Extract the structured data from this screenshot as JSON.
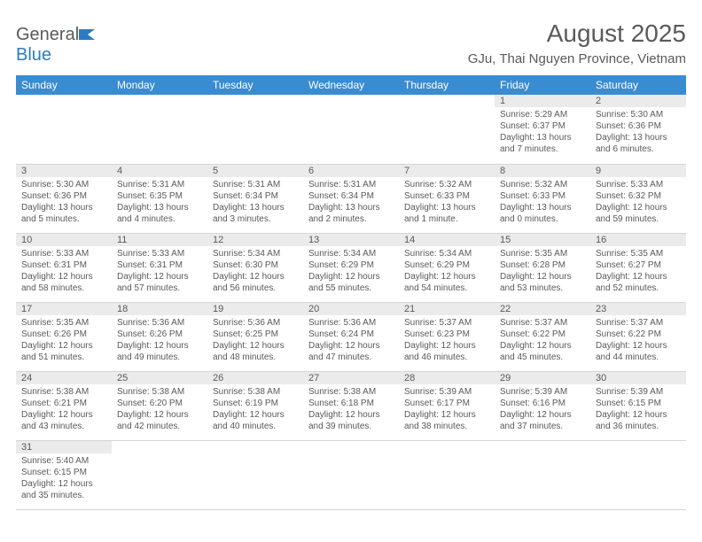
{
  "brand": {
    "name_part1": "General",
    "name_part2": "Blue"
  },
  "title": "August 2025",
  "location": "GJu, Thai Nguyen Province, Vietnam",
  "colors": {
    "header_bg": "#3a8cd1",
    "daynum_bg": "#ebebeb",
    "text": "#5a5a5a",
    "accent": "#2b7cc4"
  },
  "day_headers": [
    "Sunday",
    "Monday",
    "Tuesday",
    "Wednesday",
    "Thursday",
    "Friday",
    "Saturday"
  ],
  "weeks": [
    [
      null,
      null,
      null,
      null,
      null,
      {
        "date": "1",
        "sunrise": "Sunrise: 5:29 AM",
        "sunset": "Sunset: 6:37 PM",
        "daylight": "Daylight: 13 hours and 7 minutes."
      },
      {
        "date": "2",
        "sunrise": "Sunrise: 5:30 AM",
        "sunset": "Sunset: 6:36 PM",
        "daylight": "Daylight: 13 hours and 6 minutes."
      }
    ],
    [
      {
        "date": "3",
        "sunrise": "Sunrise: 5:30 AM",
        "sunset": "Sunset: 6:36 PM",
        "daylight": "Daylight: 13 hours and 5 minutes."
      },
      {
        "date": "4",
        "sunrise": "Sunrise: 5:31 AM",
        "sunset": "Sunset: 6:35 PM",
        "daylight": "Daylight: 13 hours and 4 minutes."
      },
      {
        "date": "5",
        "sunrise": "Sunrise: 5:31 AM",
        "sunset": "Sunset: 6:34 PM",
        "daylight": "Daylight: 13 hours and 3 minutes."
      },
      {
        "date": "6",
        "sunrise": "Sunrise: 5:31 AM",
        "sunset": "Sunset: 6:34 PM",
        "daylight": "Daylight: 13 hours and 2 minutes."
      },
      {
        "date": "7",
        "sunrise": "Sunrise: 5:32 AM",
        "sunset": "Sunset: 6:33 PM",
        "daylight": "Daylight: 13 hours and 1 minute."
      },
      {
        "date": "8",
        "sunrise": "Sunrise: 5:32 AM",
        "sunset": "Sunset: 6:33 PM",
        "daylight": "Daylight: 13 hours and 0 minutes."
      },
      {
        "date": "9",
        "sunrise": "Sunrise: 5:33 AM",
        "sunset": "Sunset: 6:32 PM",
        "daylight": "Daylight: 12 hours and 59 minutes."
      }
    ],
    [
      {
        "date": "10",
        "sunrise": "Sunrise: 5:33 AM",
        "sunset": "Sunset: 6:31 PM",
        "daylight": "Daylight: 12 hours and 58 minutes."
      },
      {
        "date": "11",
        "sunrise": "Sunrise: 5:33 AM",
        "sunset": "Sunset: 6:31 PM",
        "daylight": "Daylight: 12 hours and 57 minutes."
      },
      {
        "date": "12",
        "sunrise": "Sunrise: 5:34 AM",
        "sunset": "Sunset: 6:30 PM",
        "daylight": "Daylight: 12 hours and 56 minutes."
      },
      {
        "date": "13",
        "sunrise": "Sunrise: 5:34 AM",
        "sunset": "Sunset: 6:29 PM",
        "daylight": "Daylight: 12 hours and 55 minutes."
      },
      {
        "date": "14",
        "sunrise": "Sunrise: 5:34 AM",
        "sunset": "Sunset: 6:29 PM",
        "daylight": "Daylight: 12 hours and 54 minutes."
      },
      {
        "date": "15",
        "sunrise": "Sunrise: 5:35 AM",
        "sunset": "Sunset: 6:28 PM",
        "daylight": "Daylight: 12 hours and 53 minutes."
      },
      {
        "date": "16",
        "sunrise": "Sunrise: 5:35 AM",
        "sunset": "Sunset: 6:27 PM",
        "daylight": "Daylight: 12 hours and 52 minutes."
      }
    ],
    [
      {
        "date": "17",
        "sunrise": "Sunrise: 5:35 AM",
        "sunset": "Sunset: 6:26 PM",
        "daylight": "Daylight: 12 hours and 51 minutes."
      },
      {
        "date": "18",
        "sunrise": "Sunrise: 5:36 AM",
        "sunset": "Sunset: 6:26 PM",
        "daylight": "Daylight: 12 hours and 49 minutes."
      },
      {
        "date": "19",
        "sunrise": "Sunrise: 5:36 AM",
        "sunset": "Sunset: 6:25 PM",
        "daylight": "Daylight: 12 hours and 48 minutes."
      },
      {
        "date": "20",
        "sunrise": "Sunrise: 5:36 AM",
        "sunset": "Sunset: 6:24 PM",
        "daylight": "Daylight: 12 hours and 47 minutes."
      },
      {
        "date": "21",
        "sunrise": "Sunrise: 5:37 AM",
        "sunset": "Sunset: 6:23 PM",
        "daylight": "Daylight: 12 hours and 46 minutes."
      },
      {
        "date": "22",
        "sunrise": "Sunrise: 5:37 AM",
        "sunset": "Sunset: 6:22 PM",
        "daylight": "Daylight: 12 hours and 45 minutes."
      },
      {
        "date": "23",
        "sunrise": "Sunrise: 5:37 AM",
        "sunset": "Sunset: 6:22 PM",
        "daylight": "Daylight: 12 hours and 44 minutes."
      }
    ],
    [
      {
        "date": "24",
        "sunrise": "Sunrise: 5:38 AM",
        "sunset": "Sunset: 6:21 PM",
        "daylight": "Daylight: 12 hours and 43 minutes."
      },
      {
        "date": "25",
        "sunrise": "Sunrise: 5:38 AM",
        "sunset": "Sunset: 6:20 PM",
        "daylight": "Daylight: 12 hours and 42 minutes."
      },
      {
        "date": "26",
        "sunrise": "Sunrise: 5:38 AM",
        "sunset": "Sunset: 6:19 PM",
        "daylight": "Daylight: 12 hours and 40 minutes."
      },
      {
        "date": "27",
        "sunrise": "Sunrise: 5:38 AM",
        "sunset": "Sunset: 6:18 PM",
        "daylight": "Daylight: 12 hours and 39 minutes."
      },
      {
        "date": "28",
        "sunrise": "Sunrise: 5:39 AM",
        "sunset": "Sunset: 6:17 PM",
        "daylight": "Daylight: 12 hours and 38 minutes."
      },
      {
        "date": "29",
        "sunrise": "Sunrise: 5:39 AM",
        "sunset": "Sunset: 6:16 PM",
        "daylight": "Daylight: 12 hours and 37 minutes."
      },
      {
        "date": "30",
        "sunrise": "Sunrise: 5:39 AM",
        "sunset": "Sunset: 6:15 PM",
        "daylight": "Daylight: 12 hours and 36 minutes."
      }
    ],
    [
      {
        "date": "31",
        "sunrise": "Sunrise: 5:40 AM",
        "sunset": "Sunset: 6:15 PM",
        "daylight": "Daylight: 12 hours and 35 minutes."
      },
      null,
      null,
      null,
      null,
      null,
      null
    ]
  ]
}
